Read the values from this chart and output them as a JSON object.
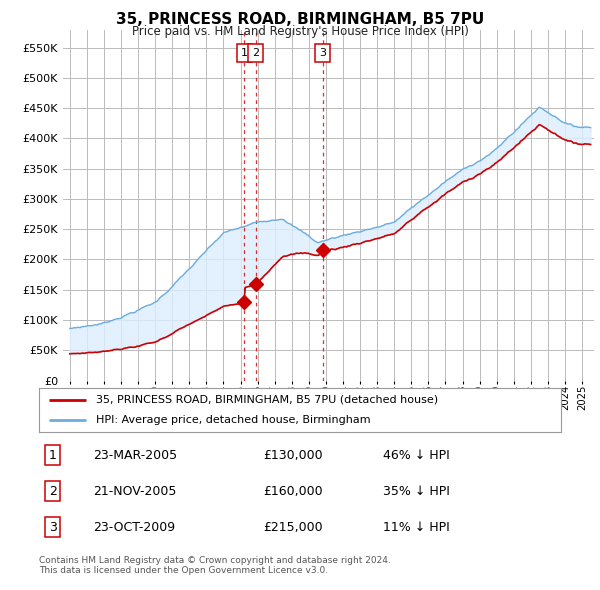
{
  "title": "35, PRINCESS ROAD, BIRMINGHAM, B5 7PU",
  "subtitle": "Price paid vs. HM Land Registry's House Price Index (HPI)",
  "ylim": [
    0,
    580000
  ],
  "yticks": [
    0,
    50000,
    100000,
    150000,
    200000,
    250000,
    300000,
    350000,
    400000,
    450000,
    500000,
    550000
  ],
  "hpi_color": "#6aace0",
  "price_color": "#cc0000",
  "fill_color": "#ddeeff",
  "grid_color": "#bbbbbb",
  "background_color": "#ffffff",
  "legend_label_price": "35, PRINCESS ROAD, BIRMINGHAM, B5 7PU (detached house)",
  "legend_label_hpi": "HPI: Average price, detached house, Birmingham",
  "transactions": [
    {
      "num": 1,
      "date": "23-MAR-2005",
      "price": 130000,
      "pct": "46% ↓ HPI",
      "t": 2005.22
    },
    {
      "num": 2,
      "date": "21-NOV-2005",
      "price": 160000,
      "pct": "35% ↓ HPI",
      "t": 2005.9
    },
    {
      "num": 3,
      "date": "23-OCT-2009",
      "price": 215000,
      "pct": "11% ↓ HPI",
      "t": 2009.81
    }
  ],
  "footnote1": "Contains HM Land Registry data © Crown copyright and database right 2024.",
  "footnote2": "This data is licensed under the Open Government Licence v3.0."
}
